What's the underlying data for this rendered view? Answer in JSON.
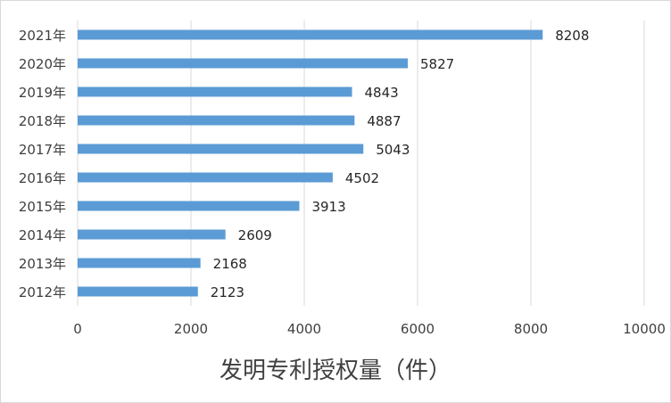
{
  "chart_data": {
    "type": "bar",
    "orientation": "horizontal",
    "categories": [
      "2021年",
      "2020年",
      "2019年",
      "2018年",
      "2017年",
      "2016年",
      "2015年",
      "2014年",
      "2013年",
      "2012年"
    ],
    "values": [
      8208,
      5827,
      4843,
      4887,
      5043,
      4502,
      3913,
      2609,
      2168,
      2123
    ],
    "title": "",
    "xlabel": "发明专利授权量（件）",
    "ylabel": "",
    "xlim": [
      0,
      10000
    ],
    "xticks": [
      "0",
      "2000",
      "4000",
      "6000",
      "8000",
      "10000"
    ],
    "grid": true,
    "legend": "none",
    "bar_color": "#5b9bd5",
    "grid_color": "#d9d9d9"
  }
}
